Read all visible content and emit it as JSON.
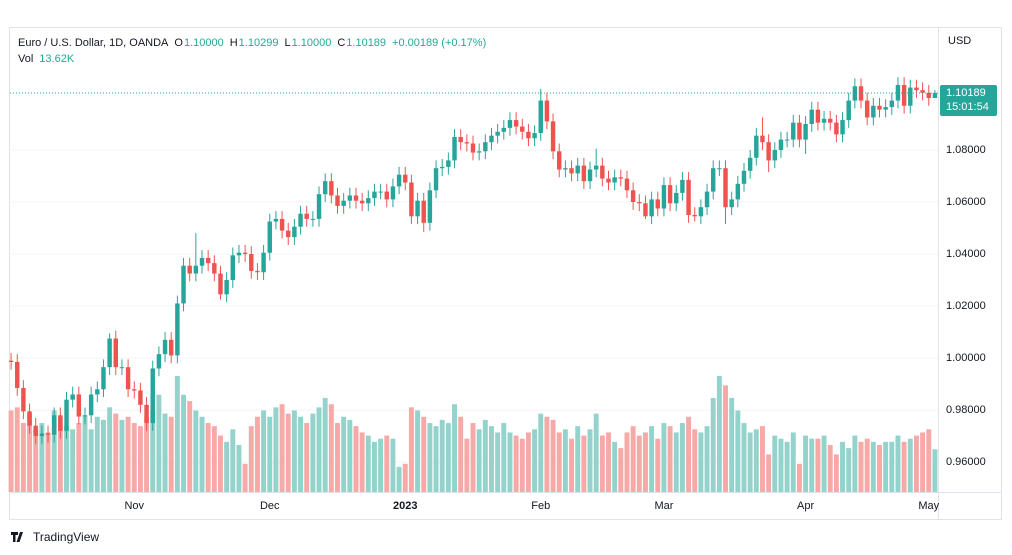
{
  "chart_data": {
    "type": "candlestick",
    "title": "Euro / U.S. Dollar, 1D, OANDA",
    "header_stats": [
      {
        "label": "O",
        "value": "1.10000"
      },
      {
        "label": "H",
        "value": "1.10299"
      },
      {
        "label": "L",
        "value": "1.10000"
      },
      {
        "label": "C",
        "value": "1.10189"
      }
    ],
    "change": "+0.00189 (+0.17%)",
    "volume_label": "Vol",
    "volume_value": "13.62K",
    "currency": "USD",
    "last_price_label": "1.10189",
    "countdown": "15:01:54",
    "brand": "TradingView",
    "up_color": "#26a69a",
    "down_color": "#ef5350",
    "volume_up_color": "#93d3cc",
    "volume_down_color": "#f6a9a7",
    "grid": true,
    "ylim": [
      0.9485,
      1.1269
    ],
    "yticks": [
      {
        "value": 0.96,
        "label": "0.96000"
      },
      {
        "value": 0.98,
        "label": "0.98000"
      },
      {
        "value": 1.0,
        "label": "1.00000"
      },
      {
        "value": 1.02,
        "label": "1.02000"
      },
      {
        "value": 1.04,
        "label": "1.04000"
      },
      {
        "value": 1.06,
        "label": "1.06000"
      },
      {
        "value": 1.08,
        "label": "1.08000"
      }
    ],
    "categories": [
      null,
      null,
      null,
      null,
      null,
      null,
      null,
      null,
      null,
      null,
      null,
      null,
      null,
      null,
      null,
      null,
      null,
      null,
      null,
      null,
      "Nov",
      null,
      null,
      null,
      null,
      null,
      null,
      null,
      null,
      null,
      null,
      null,
      null,
      null,
      null,
      null,
      null,
      null,
      null,
      null,
      null,
      null,
      "Dec",
      null,
      null,
      null,
      null,
      null,
      null,
      null,
      null,
      null,
      null,
      null,
      null,
      null,
      null,
      null,
      null,
      null,
      null,
      null,
      null,
      null,
      "2023",
      null,
      null,
      null,
      null,
      null,
      null,
      null,
      null,
      null,
      null,
      null,
      null,
      null,
      null,
      null,
      null,
      null,
      null,
      null,
      null,
      null,
      "Feb",
      null,
      null,
      null,
      null,
      null,
      null,
      null,
      null,
      null,
      null,
      null,
      null,
      null,
      null,
      null,
      null,
      null,
      null,
      null,
      "Mar",
      null,
      null,
      null,
      null,
      null,
      null,
      null,
      null,
      null,
      null,
      null,
      null,
      null,
      null,
      null,
      null,
      null,
      null,
      null,
      null,
      null,
      null,
      "Apr",
      null,
      null,
      null,
      null,
      null,
      null,
      null,
      null,
      null,
      null,
      null,
      null,
      null,
      null,
      null,
      null,
      null,
      null,
      null,
      "May",
      null
    ],
    "open": [
      0.999,
      0.9985,
      0.9885,
      0.9795,
      0.974,
      0.97,
      0.971,
      0.9705,
      0.978,
      0.972,
      0.984,
      0.986,
      0.9775,
      0.978,
      0.986,
      0.988,
      0.9965,
      1.0075,
      0.9965,
      0.9965,
      0.988,
      0.9875,
      0.982,
      0.975,
      0.996,
      1.0015,
      1.007,
      1.001,
      1.021,
      1.0355,
      1.0325,
      1.0355,
      1.0385,
      1.0365,
      1.0325,
      1.0245,
      1.03,
      1.0395,
      1.0405,
      1.04,
      1.0335,
      1.033,
      1.0405,
      1.0525,
      1.0535,
      1.049,
      1.0465,
      1.0505,
      1.0555,
      1.0535,
      1.0535,
      1.063,
      1.068,
      1.0625,
      1.0585,
      1.0605,
      1.0625,
      1.0605,
      1.0595,
      1.0615,
      1.064,
      1.064,
      1.061,
      1.066,
      1.0705,
      1.0675,
      1.0545,
      1.0605,
      1.052,
      1.0645,
      1.073,
      1.0735,
      1.076,
      1.085,
      1.083,
      1.0825,
      1.079,
      1.0795,
      1.083,
      1.0855,
      1.087,
      1.0885,
      1.0915,
      1.089,
      1.087,
      1.0845,
      1.0865,
      1.099,
      1.091,
      1.0795,
      1.0725,
      1.073,
      1.071,
      1.074,
      1.068,
      1.0725,
      1.074,
      1.069,
      1.0675,
      1.0695,
      1.069,
      1.0645,
      1.06,
      1.0595,
      1.0545,
      1.061,
      1.0575,
      1.0665,
      1.0595,
      1.0635,
      1.0685,
      1.055,
      1.0545,
      1.058,
      1.064,
      1.073,
      1.073,
      1.058,
      1.061,
      1.067,
      1.072,
      1.077,
      1.0855,
      1.083,
      1.076,
      1.08,
      1.084,
      1.084,
      1.0905,
      1.084,
      1.09,
      1.0955,
      1.0905,
      1.092,
      1.0905,
      1.086,
      1.0915,
      1.099,
      1.1045,
      1.099,
      1.0925,
      1.097,
      1.0955,
      1.0965,
      1.099,
      1.105,
      1.097,
      1.104,
      1.103,
      1.102,
      1.1
    ],
    "high": [
      1.002,
      1.0015,
      0.9915,
      0.9825,
      0.977,
      0.974,
      0.974,
      0.981,
      0.981,
      0.987,
      0.989,
      0.989,
      0.981,
      0.989,
      0.991,
      0.9995,
      1.0095,
      1.0105,
      0.9995,
      0.9995,
      0.991,
      0.9905,
      0.985,
      0.999,
      1.0045,
      1.01,
      1.01,
      1.024,
      1.0385,
      1.0385,
      1.048,
      1.0415,
      1.0415,
      1.0395,
      1.0355,
      1.033,
      1.0425,
      1.0435,
      1.0435,
      1.043,
      1.0365,
      1.0435,
      1.0555,
      1.0565,
      1.0565,
      1.052,
      1.0535,
      1.0585,
      1.0585,
      1.0565,
      1.066,
      1.071,
      1.071,
      1.0655,
      1.0635,
      1.0655,
      1.0655,
      1.0635,
      1.0645,
      1.067,
      1.067,
      1.067,
      1.069,
      1.0735,
      1.0735,
      1.0705,
      1.0635,
      1.0635,
      1.0675,
      1.076,
      1.0765,
      1.079,
      1.088,
      1.088,
      1.086,
      1.0855,
      1.0825,
      1.086,
      1.0885,
      1.09,
      1.0915,
      1.0945,
      1.0945,
      1.092,
      1.09,
      1.0895,
      1.1035,
      1.102,
      1.094,
      1.0825,
      1.076,
      1.076,
      1.077,
      1.077,
      1.0755,
      1.0805,
      1.077,
      1.072,
      1.0725,
      1.0725,
      1.072,
      1.0675,
      1.063,
      1.0625,
      1.064,
      1.064,
      1.0695,
      1.0695,
      1.0665,
      1.0715,
      1.0715,
      1.058,
      1.061,
      1.067,
      1.076,
      1.076,
      1.076,
      1.064,
      1.07,
      1.075,
      1.08,
      1.0885,
      1.0925,
      1.086,
      1.083,
      1.087,
      1.087,
      1.0935,
      1.0935,
      1.093,
      1.0985,
      1.0985,
      1.095,
      1.095,
      1.0935,
      1.0945,
      1.102,
      1.1075,
      1.1075,
      1.102,
      1.1,
      1.1,
      1.0995,
      1.102,
      1.108,
      1.108,
      1.107,
      1.107,
      1.106,
      1.105,
      1.10299
    ],
    "low": [
      0.9955,
      0.9855,
      0.9765,
      0.971,
      0.967,
      0.967,
      0.9675,
      0.9675,
      0.969,
      0.969,
      0.981,
      0.9745,
      0.9745,
      0.975,
      0.983,
      0.985,
      0.9935,
      0.9935,
      0.9935,
      0.985,
      0.9845,
      0.979,
      0.972,
      0.972,
      0.993,
      0.9985,
      0.998,
      0.998,
      1.018,
      1.0295,
      1.0295,
      1.0325,
      1.0335,
      1.0295,
      1.0225,
      1.0215,
      1.027,
      1.0365,
      1.037,
      1.0305,
      1.03,
      1.03,
      1.0375,
      1.0495,
      1.046,
      1.0435,
      1.0435,
      1.0475,
      1.0505,
      1.0505,
      1.0505,
      1.06,
      1.0595,
      1.0555,
      1.0555,
      1.0575,
      1.0575,
      1.0565,
      1.0565,
      1.0585,
      1.061,
      1.058,
      1.058,
      1.063,
      1.0645,
      1.0515,
      1.0515,
      1.0485,
      1.049,
      1.0615,
      1.07,
      1.0705,
      1.073,
      1.08,
      1.0795,
      1.076,
      1.076,
      1.0765,
      1.08,
      1.0825,
      1.084,
      1.0855,
      1.086,
      1.084,
      1.0815,
      1.0815,
      1.0835,
      1.088,
      1.0765,
      1.0695,
      1.0695,
      1.068,
      1.068,
      1.065,
      1.065,
      1.0695,
      1.066,
      1.0645,
      1.0645,
      1.066,
      1.0615,
      1.057,
      1.0565,
      1.0535,
      1.0515,
      1.0545,
      1.0545,
      1.0565,
      1.0565,
      1.0605,
      1.052,
      1.0525,
      1.0515,
      1.055,
      1.061,
      1.07,
      1.0515,
      1.055,
      1.058,
      1.064,
      1.069,
      1.074,
      1.08,
      1.0715,
      1.073,
      1.077,
      1.081,
      1.081,
      1.081,
      1.0785,
      1.087,
      1.0875,
      1.0875,
      1.0875,
      1.083,
      1.083,
      1.0885,
      1.096,
      1.096,
      1.0895,
      1.0895,
      1.0925,
      1.0925,
      1.0935,
      1.096,
      1.094,
      1.094,
      1.1,
      1.099,
      1.097,
      1.1
    ],
    "close": [
      0.9985,
      0.9885,
      0.9795,
      0.974,
      0.97,
      0.971,
      0.9705,
      0.978,
      0.972,
      0.984,
      0.986,
      0.9775,
      0.978,
      0.986,
      0.988,
      0.9965,
      1.0075,
      0.9965,
      0.9965,
      0.988,
      0.9875,
      0.982,
      0.975,
      0.996,
      1.0015,
      1.007,
      1.001,
      1.021,
      1.0355,
      1.0325,
      1.0355,
      1.0385,
      1.0365,
      1.0325,
      1.0245,
      1.03,
      1.0395,
      1.0405,
      1.04,
      1.0335,
      1.033,
      1.0405,
      1.0525,
      1.0535,
      1.049,
      1.0465,
      1.0505,
      1.0555,
      1.0535,
      1.0535,
      1.063,
      1.068,
      1.0625,
      1.0585,
      1.0605,
      1.0625,
      1.0605,
      1.0595,
      1.0615,
      1.064,
      1.064,
      1.061,
      1.066,
      1.0705,
      1.0675,
      1.0545,
      1.0605,
      1.052,
      1.0645,
      1.073,
      1.0735,
      1.076,
      1.085,
      1.083,
      1.0825,
      1.079,
      1.0795,
      1.083,
      1.0855,
      1.087,
      1.0885,
      1.0915,
      1.089,
      1.087,
      1.0845,
      1.0865,
      1.099,
      1.091,
      1.0795,
      1.0725,
      1.073,
      1.071,
      1.074,
      1.068,
      1.0725,
      1.074,
      1.069,
      1.0675,
      1.0695,
      1.069,
      1.0645,
      1.06,
      1.0595,
      1.0545,
      1.061,
      1.0575,
      1.0665,
      1.0595,
      1.0635,
      1.0685,
      1.055,
      1.0545,
      1.058,
      1.064,
      1.073,
      1.073,
      1.058,
      1.061,
      1.067,
      1.072,
      1.077,
      1.0855,
      1.083,
      1.076,
      1.08,
      1.084,
      1.084,
      1.0905,
      1.084,
      1.09,
      1.0955,
      1.0905,
      1.092,
      1.0905,
      1.086,
      1.0915,
      1.099,
      1.1045,
      1.099,
      1.0925,
      1.097,
      1.0955,
      1.0965,
      1.099,
      1.105,
      1.097,
      1.104,
      1.103,
      1.102,
      1.1,
      1.10189
    ],
    "volume": [
      26,
      27,
      22,
      25,
      20,
      22,
      19,
      26,
      24,
      21,
      20,
      22,
      24,
      20,
      24,
      23,
      27,
      25,
      23,
      24,
      22,
      21,
      24,
      26,
      31,
      25,
      24,
      37,
      31,
      29,
      26,
      24,
      22,
      21,
      18,
      16,
      20,
      15,
      9,
      21,
      24,
      26,
      24,
      27,
      28,
      25,
      26,
      24,
      22,
      25,
      27,
      30,
      28,
      22,
      24,
      23,
      21,
      19,
      18,
      16,
      17,
      18,
      17,
      8,
      9,
      27,
      26,
      24,
      22,
      21,
      23,
      22,
      28,
      24,
      17,
      22,
      20,
      23,
      21,
      19,
      22,
      19,
      18,
      17,
      19,
      20,
      25,
      24,
      23,
      19,
      20,
      17,
      21,
      18,
      20,
      25,
      18,
      19,
      16,
      14,
      19,
      21,
      18,
      19,
      21,
      17,
      22,
      21,
      19,
      22,
      24,
      20,
      19,
      21,
      30,
      37,
      34,
      30,
      26,
      22,
      19,
      20,
      21,
      12,
      18,
      17,
      16,
      19,
      9,
      18,
      17,
      17,
      18,
      15,
      12,
      16,
      14,
      18,
      16,
      17,
      16,
      15,
      16,
      16,
      18,
      16,
      17,
      18,
      19,
      20,
      13.62
    ]
  }
}
